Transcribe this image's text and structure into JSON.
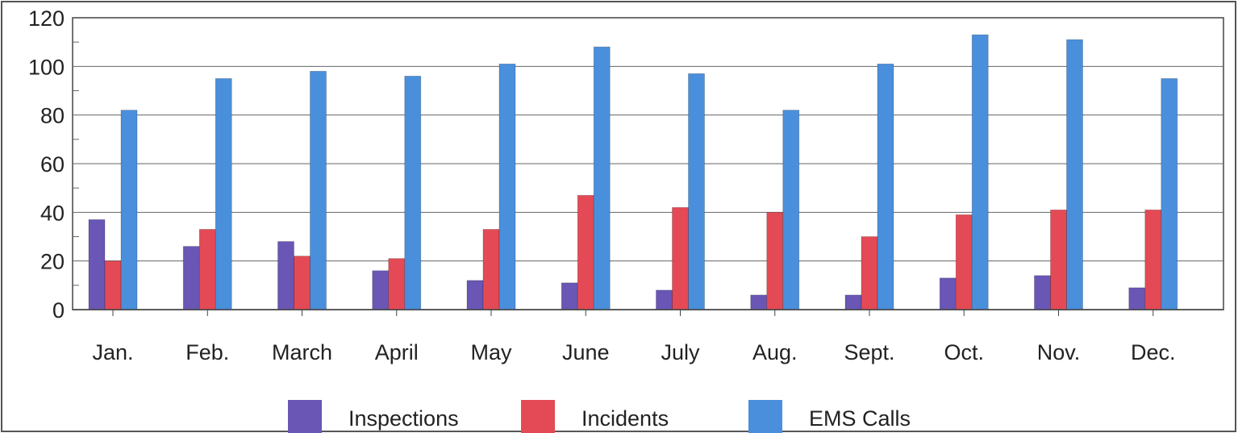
{
  "chart_data": {
    "type": "bar",
    "title": "",
    "xlabel": "",
    "ylabel": "",
    "ylim": [
      0,
      120
    ],
    "yticks": [
      0,
      20,
      40,
      60,
      80,
      100,
      120
    ],
    "grid": true,
    "legend": "bottom",
    "categories": [
      "Jan.",
      "Feb.",
      "March",
      "April",
      "May",
      "June",
      "July",
      "Aug.",
      "Sept.",
      "Oct.",
      "Nov.",
      "Dec."
    ],
    "series": [
      {
        "name": "Inspections",
        "color": "#6a56b5",
        "values": [
          37,
          26,
          28,
          16,
          12,
          11,
          8,
          6,
          6,
          13,
          14,
          9
        ]
      },
      {
        "name": "Incidents",
        "color": "#e44a55",
        "values": [
          20,
          33,
          22,
          21,
          33,
          47,
          42,
          40,
          30,
          39,
          41,
          41
        ]
      },
      {
        "name": "EMS Calls",
        "color": "#4a8fdc",
        "values": [
          82,
          95,
          98,
          96,
          101,
          108,
          97,
          82,
          101,
          113,
          111,
          95
        ]
      }
    ]
  }
}
